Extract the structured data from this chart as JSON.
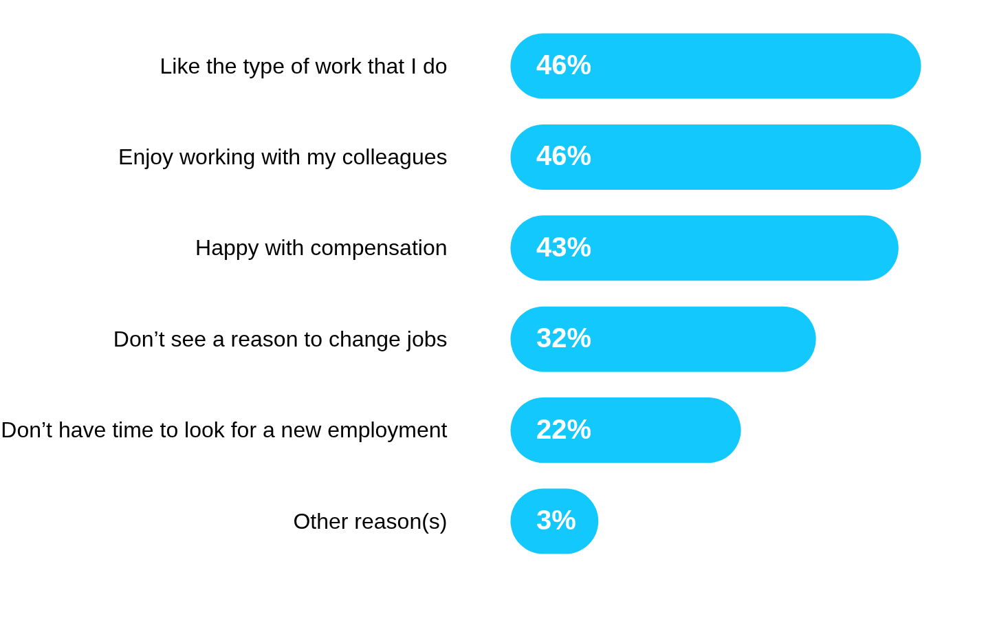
{
  "chart_data": {
    "type": "bar",
    "orientation": "horizontal",
    "categories": [
      "Like the type of work that I do",
      "Enjoy working with my colleagues",
      "Happy with compensation",
      "Don’t see a reason to change jobs",
      "Don’t have time to look for a new employment",
      "Other reason(s)"
    ],
    "values": [
      46,
      46,
      43,
      32,
      22,
      3
    ],
    "value_labels": [
      "46%",
      "46%",
      "43%",
      "32%",
      "22%",
      "3%"
    ],
    "color": "#13c8fd",
    "grid": false,
    "tick_labels": "y"
  }
}
